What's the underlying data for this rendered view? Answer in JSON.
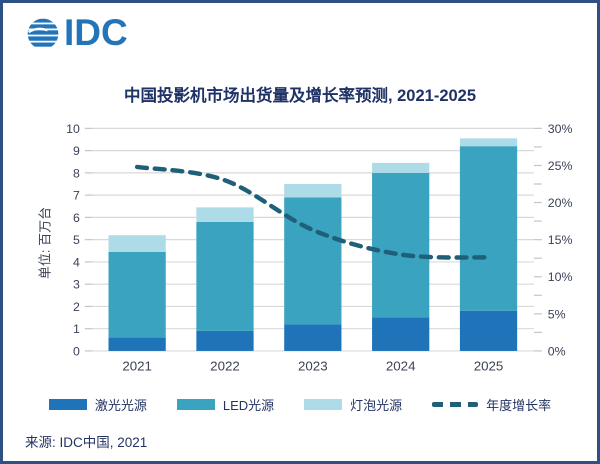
{
  "brand": {
    "logo_text": "IDC"
  },
  "header": {
    "title": "中国投影机市场出货量及增长率预测, 2021-2025"
  },
  "footer": {
    "source": "来源: IDC中国, 2021"
  },
  "colors": {
    "logo_blue": "#2374b9",
    "title_text": "#1f3265",
    "axis_text": "#3c4257",
    "gridline": "#d9d9d9",
    "frame_border": "#2d5183",
    "laser_bar": "#1e73b9",
    "led_bar": "#3aa3bf",
    "bulb_bar": "#aedbe8",
    "growth_line": "#1f6078"
  },
  "chart_data": {
    "type": "bar",
    "subtype": "stacked-bar-with-dashed-line",
    "title": "中国投影机市场出货量及增长率预测, 2021-2025",
    "categories": [
      "2021",
      "2022",
      "2023",
      "2024",
      "2025"
    ],
    "series": [
      {
        "key": "laser",
        "name": "激光光源",
        "type": "bar",
        "stacked": true,
        "color": "#1e73b9",
        "values": [
          0.6,
          0.9,
          1.2,
          1.5,
          1.8
        ]
      },
      {
        "key": "led",
        "name": "LED光源",
        "type": "bar",
        "stacked": true,
        "color": "#3aa3bf",
        "values": [
          3.85,
          4.9,
          5.7,
          6.5,
          7.4
        ]
      },
      {
        "key": "bulb",
        "name": "灯泡光源",
        "type": "bar",
        "stacked": true,
        "color": "#aedbe8",
        "values": [
          0.75,
          0.65,
          0.6,
          0.45,
          0.35
        ]
      },
      {
        "key": "growth",
        "name": "年度增长率",
        "type": "line",
        "style": "dashed",
        "axis": "right",
        "color": "#1f6078",
        "values": [
          24.8,
          23.0,
          16.3,
          13.0,
          12.6
        ]
      }
    ],
    "stacked_totals": [
      5.2,
      6.45,
      7.5,
      8.45,
      9.55
    ],
    "left_axis": {
      "title": "单位: 百万台",
      "min": 0,
      "max": 10,
      "tick_step": 1,
      "tick_labels": [
        "0",
        "1",
        "2",
        "3",
        "4",
        "5",
        "6",
        "7",
        "8",
        "9",
        "10"
      ]
    },
    "right_axis": {
      "min": 0,
      "max": 30,
      "label_step": 5,
      "minor_tick_step": 2.5,
      "tick_labels": [
        "0%",
        "5%",
        "10%",
        "15%",
        "20%",
        "25%",
        "30%"
      ]
    },
    "grid": true,
    "legend_position": "bottom"
  }
}
